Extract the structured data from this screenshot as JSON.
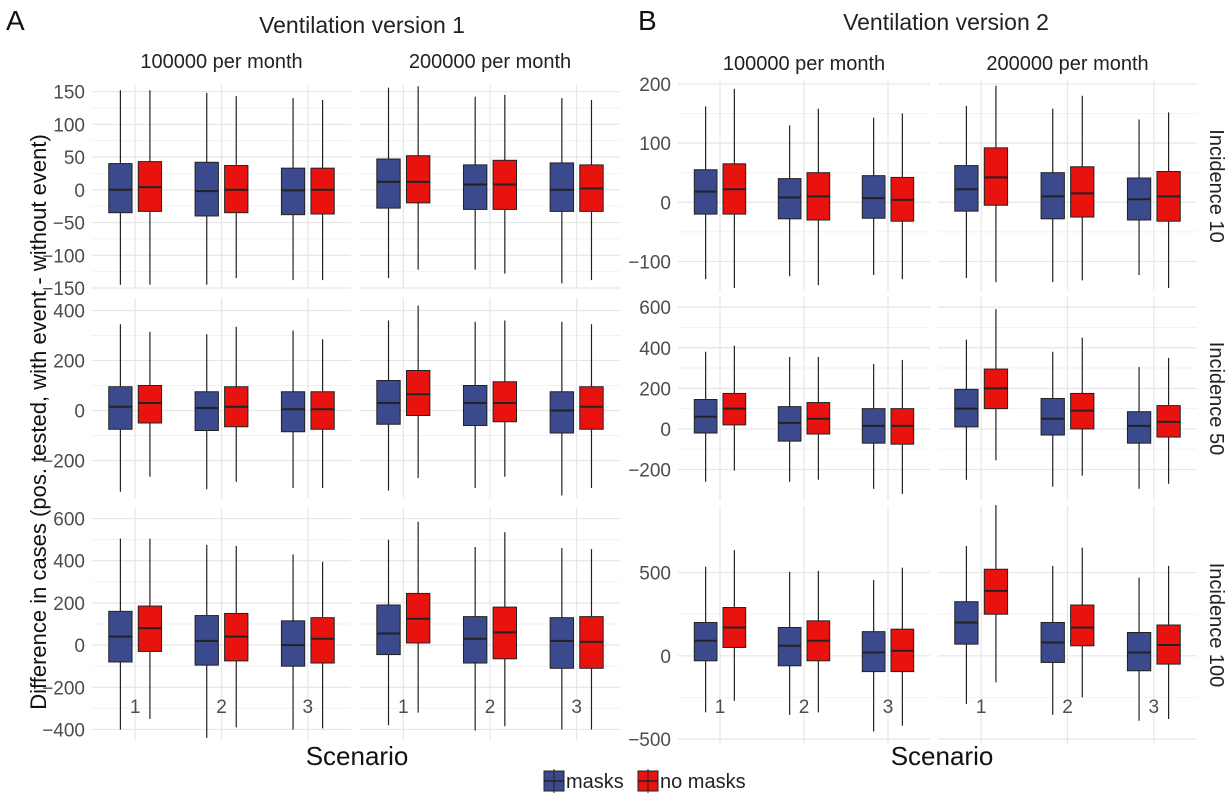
{
  "colors": {
    "masks": "#3B4A8C",
    "no_masks": "#E8130F",
    "grid_major": "#e6e6e6",
    "grid_minor": "#f2f2f2"
  },
  "legend": {
    "items": [
      {
        "key": "masks",
        "label": "masks"
      },
      {
        "key": "no_masks",
        "label": "no masks"
      }
    ]
  },
  "y_axis_label": "Difference in cases (pos. tested, with event - without event)",
  "x_axis_label": "Scenario",
  "chart_data": [
    {
      "panel": "A",
      "title": "Ventilation version 1",
      "type": "boxplot",
      "columns": [
        "100000 per month",
        "200000 per month"
      ],
      "rows": [
        {
          "ylim": [
            -150,
            160
          ],
          "yticks": [
            150,
            100,
            50,
            0,
            -50,
            -100,
            -150
          ],
          "cells": [
            {
              "masks": [
                [
                  -145,
                  -35,
                  0,
                  40,
                  152
                ],
                [
                  -145,
                  -40,
                  -2,
                  42,
                  148
                ],
                [
                  -138,
                  -38,
                  -1,
                  33,
                  140
                ]
              ],
              "no_masks": [
                [
                  -145,
                  -33,
                  4,
                  43,
                  152
                ],
                [
                  -135,
                  -35,
                  0,
                  37,
                  143
                ],
                [
                  -138,
                  -37,
                  0,
                  33,
                  137
                ]
              ]
            },
            {
              "masks": [
                [
                  -135,
                  -28,
                  12,
                  47,
                  156
                ],
                [
                  -122,
                  -30,
                  8,
                  38,
                  142
                ],
                [
                  -143,
                  -33,
                  0,
                  41,
                  140
                ]
              ],
              "no_masks": [
                [
                  -122,
                  -20,
                  12,
                  52,
                  158
                ],
                [
                  -128,
                  -30,
                  8,
                  45,
                  145
                ],
                [
                  -138,
                  -33,
                  2,
                  38,
                  137
                ]
              ]
            }
          ]
        },
        {
          "ylim": [
            -350,
            450
          ],
          "yticks": [
            400,
            200,
            0,
            -200
          ],
          "cells": [
            {
              "masks": [
                [
                  -325,
                  -75,
                  15,
                  95,
                  345
                ],
                [
                  -315,
                  -80,
                  10,
                  75,
                  305
                ],
                [
                  -310,
                  -85,
                  5,
                  75,
                  320
                ]
              ],
              "no_masks": [
                [
                  -265,
                  -50,
                  30,
                  100,
                  315
                ],
                [
                  -285,
                  -65,
                  15,
                  95,
                  335
                ],
                [
                  -310,
                  -75,
                  5,
                  75,
                  285
                ]
              ]
            },
            {
              "masks": [
                [
                  -320,
                  -55,
                  30,
                  120,
                  360
                ],
                [
                  -310,
                  -60,
                  30,
                  100,
                  355
                ],
                [
                  -340,
                  -90,
                  0,
                  75,
                  355
                ]
              ],
              "no_masks": [
                [
                  -270,
                  -20,
                  65,
                  160,
                  420
                ],
                [
                  -265,
                  -45,
                  30,
                  115,
                  360
                ],
                [
                  -310,
                  -75,
                  15,
                  95,
                  345
                ]
              ]
            }
          ]
        },
        {
          "ylim": [
            -450,
            650
          ],
          "yticks": [
            600,
            400,
            200,
            0,
            -200,
            -400
          ],
          "cells": [
            {
              "masks": [
                [
                  -400,
                  -80,
                  40,
                  160,
                  505
                ],
                [
                  -440,
                  -95,
                  20,
                  140,
                  475
                ],
                [
                  -400,
                  -100,
                  0,
                  115,
                  430
                ]
              ],
              "no_masks": [
                [
                  -350,
                  -30,
                  80,
                  185,
                  505
                ],
                [
                  -390,
                  -75,
                  40,
                  150,
                  470
                ],
                [
                  -395,
                  -85,
                  30,
                  130,
                  395
                ]
              ]
            },
            {
              "masks": [
                [
                  -380,
                  -45,
                  55,
                  190,
                  500
                ],
                [
                  -405,
                  -85,
                  30,
                  135,
                  465
                ],
                [
                  -400,
                  -110,
                  20,
                  130,
                  460
                ]
              ],
              "no_masks": [
                [
                  -320,
                  10,
                  125,
                  245,
                  585
                ],
                [
                  -385,
                  -65,
                  60,
                  180,
                  535
                ],
                [
                  -400,
                  -110,
                  15,
                  135,
                  455
                ]
              ]
            }
          ]
        }
      ],
      "x_categories": [
        "1",
        "2",
        "3"
      ]
    },
    {
      "panel": "B",
      "title": "Ventilation version 2",
      "type": "boxplot",
      "columns": [
        "100000 per month",
        "200000 per month"
      ],
      "row_labels": [
        "Incidence 10",
        "Incidence 50",
        "Incidence 100"
      ],
      "rows": [
        {
          "ylim": [
            -150,
            205
          ],
          "yticks": [
            200,
            100,
            0,
            -100
          ],
          "cells": [
            {
              "masks": [
                [
                  -130,
                  -20,
                  18,
                  55,
                  162
                ],
                [
                  -125,
                  -28,
                  8,
                  40,
                  130
                ],
                [
                  -123,
                  -27,
                  7,
                  45,
                  143
                ]
              ],
              "no_masks": [
                [
                  -145,
                  -20,
                  22,
                  65,
                  192
                ],
                [
                  -140,
                  -30,
                  10,
                  50,
                  158
                ],
                [
                  -130,
                  -32,
                  4,
                  42,
                  150
                ]
              ]
            },
            {
              "masks": [
                [
                  -128,
                  -15,
                  22,
                  62,
                  163
                ],
                [
                  -135,
                  -28,
                  10,
                  50,
                  158
                ],
                [
                  -123,
                  -30,
                  5,
                  41,
                  140
                ]
              ],
              "no_masks": [
                [
                  -135,
                  -5,
                  42,
                  92,
                  197
                ],
                [
                  -132,
                  -25,
                  15,
                  60,
                  180
                ],
                [
                  -145,
                  -32,
                  10,
                  52,
                  152
                ]
              ]
            }
          ]
        },
        {
          "ylim": [
            -350,
            650
          ],
          "yticks": [
            600,
            400,
            200,
            0,
            -200
          ],
          "cells": [
            {
              "masks": [
                [
                  -260,
                  -20,
                  60,
                  145,
                  380
                ],
                [
                  -260,
                  -60,
                  30,
                  110,
                  355
                ],
                [
                  -295,
                  -70,
                  15,
                  100,
                  320
                ]
              ],
              "no_masks": [
                [
                  -205,
                  20,
                  100,
                  175,
                  410
                ],
                [
                  -250,
                  -25,
                  50,
                  130,
                  355
                ],
                [
                  -320,
                  -75,
                  15,
                  100,
                  340
                ]
              ]
            },
            {
              "masks": [
                [
                  -250,
                  10,
                  100,
                  195,
                  440
                ],
                [
                  -285,
                  -30,
                  50,
                  150,
                  380
                ],
                [
                  -295,
                  -70,
                  15,
                  85,
                  305
                ]
              ],
              "no_masks": [
                [
                  -155,
                  100,
                  200,
                  295,
                  590
                ],
                [
                  -230,
                  0,
                  90,
                  175,
                  450
                ],
                [
                  -270,
                  -40,
                  35,
                  115,
                  350
                ]
              ]
            }
          ]
        },
        {
          "ylim": [
            -530,
            900
          ],
          "yticks": [
            500,
            0,
            -500
          ],
          "cells": [
            {
              "masks": [
                [
                  -340,
                  -30,
                  90,
                  200,
                  535
                ],
                [
                  -355,
                  -60,
                  60,
                  170,
                  505
                ],
                [
                  -455,
                  -95,
                  20,
                  145,
                  455
                ]
              ],
              "no_masks": [
                [
                  -270,
                  50,
                  170,
                  290,
                  635
                ],
                [
                  -340,
                  -30,
                  90,
                  210,
                  510
                ],
                [
                  -420,
                  -95,
                  30,
                  160,
                  530
                ]
              ]
            },
            {
              "masks": [
                [
                  -290,
                  70,
                  200,
                  325,
                  660
                ],
                [
                  -355,
                  -40,
                  80,
                  200,
                  540
                ],
                [
                  -390,
                  -90,
                  20,
                  140,
                  470
                ]
              ],
              "no_masks": [
                [
                  -160,
                  250,
                  390,
                  520,
                  905
                ],
                [
                  -250,
                  60,
                  170,
                  305,
                  650
                ],
                [
                  -380,
                  -50,
                  65,
                  185,
                  540
                ]
              ]
            }
          ]
        }
      ],
      "x_categories": [
        "1",
        "2",
        "3"
      ]
    }
  ]
}
